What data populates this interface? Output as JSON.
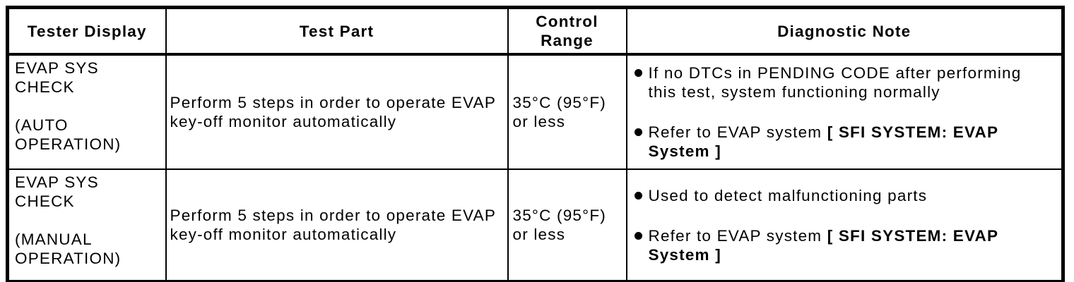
{
  "page": {
    "background_color": "#ffffff",
    "border_color": "#000000",
    "text_color": "#000000"
  },
  "table": {
    "headers": [
      {
        "label": "Tester Display"
      },
      {
        "label": "Test Part"
      },
      {
        "label": "Control\nRange"
      },
      {
        "label": "Diagnostic Note"
      }
    ],
    "rows": [
      {
        "tester_display": "EVAP SYS\nCHECK\n\n(AUTO\nOPERATION)",
        "test_part": "Perform 5 steps in order to operate EVAP key-off monitor automatically",
        "control_range": "35°C (95°F)\nor less",
        "notes": [
          [
            {
              "text": "If no DTCs in PENDING CODE after performing this test, system functioning normally",
              "bold": false
            }
          ],
          [
            {
              "text": "Refer to EVAP system ",
              "bold": false
            },
            {
              "text": "[ SFI SYSTEM: EVAP System ]",
              "bold": true
            }
          ]
        ]
      },
      {
        "tester_display": "EVAP SYS\nCHECK\n\n(MANUAL\nOPERATION)",
        "test_part": "Perform 5 steps in order to operate EVAP key-off monitor automatically",
        "control_range": "35°C (95°F)\nor less",
        "notes": [
          [
            {
              "text": "Used to detect malfunctioning parts",
              "bold": false
            }
          ],
          [
            {
              "text": "Refer to EVAP system ",
              "bold": false
            },
            {
              "text": "[ SFI SYSTEM: EVAP System ]",
              "bold": true
            }
          ]
        ]
      }
    ]
  }
}
